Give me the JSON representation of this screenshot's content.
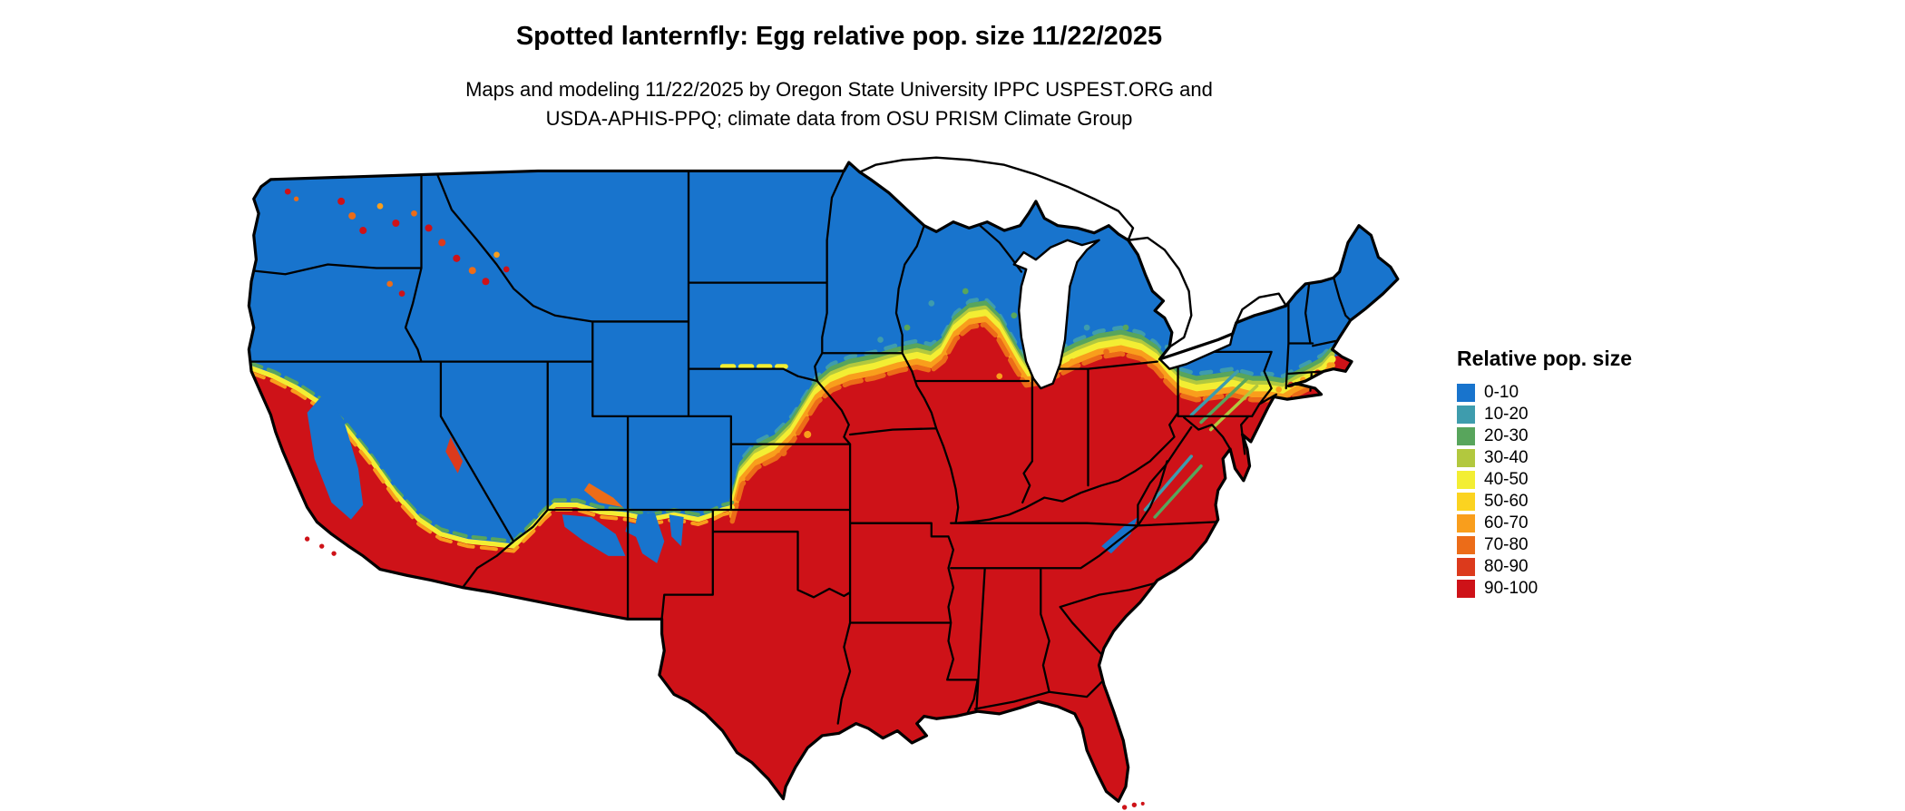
{
  "title": "Spotted lanternfly: Egg relative pop. size 11/22/2025",
  "subtitle_line1": "Maps and modeling 11/22/2025 by Oregon State University IPPC USPEST.ORG and",
  "subtitle_line2": "USDA-APHIS-PPQ; climate data from OSU PRISM Climate Group",
  "legend": {
    "title": "Relative pop. size",
    "items": [
      {
        "label": "0-10",
        "color": "#1874cd"
      },
      {
        "label": "10-20",
        "color": "#3e9cad"
      },
      {
        "label": "20-30",
        "color": "#58a55c"
      },
      {
        "label": "30-40",
        "color": "#b2c83e"
      },
      {
        "label": "40-50",
        "color": "#f3ee33"
      },
      {
        "label": "50-60",
        "color": "#fbd320"
      },
      {
        "label": "60-70",
        "color": "#f99e1c"
      },
      {
        "label": "70-80",
        "color": "#ec6c18"
      },
      {
        "label": "80-90",
        "color": "#dc3a1c"
      },
      {
        "label": "90-100",
        "color": "#ce1218"
      }
    ]
  },
  "map": {
    "region": "Contiguous United States",
    "land_border_color": "#000000",
    "water_color": "#ffffff",
    "low_population_color": "#1874cd",
    "high_population_color": "#ce1218"
  }
}
